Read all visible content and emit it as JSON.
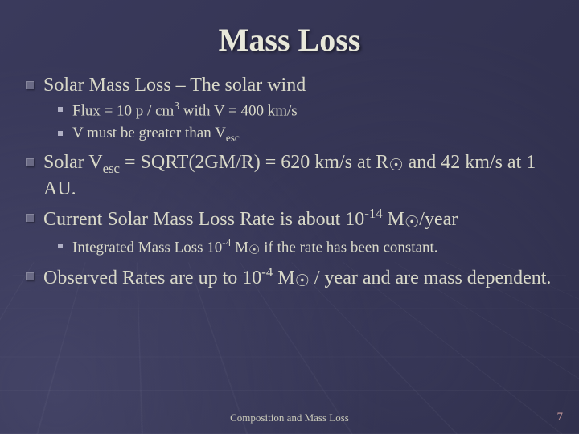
{
  "title": "Mass Loss",
  "items": [
    {
      "level": 1,
      "html": "Solar Mass Loss – The solar wind"
    },
    {
      "level": 2,
      "html": "Flux = 10 p / cm<sup>3</sup> with V = 400 km/s"
    },
    {
      "level": 2,
      "html": "V must be greater than V<sub>esc</sub>"
    },
    {
      "level": 1,
      "html": "Solar V<sub>esc</sub> = SQRT(2GM/R) = 620 km/s at R<span class=\"sun\">☉</span> and 42 km/s at 1 AU."
    },
    {
      "level": 1,
      "html": "Current Solar Mass Loss Rate is about 10<sup>-14</sup> M<span class=\"sun\">☉</span>/year"
    },
    {
      "level": 2,
      "html": "Integrated Mass Loss  10<sup>-4</sup> M<span class=\"sun\">☉</span> if the rate has been constant."
    },
    {
      "level": 1,
      "html": "Observed Rates are up to 10<sup>-4</sup> M<span class=\"sun\">☉</span> / year and are mass dependent."
    }
  ],
  "footer": "Composition and Mass Loss",
  "page_number": "7",
  "colors": {
    "background": "#3a3a5c",
    "title": "#e8e8da",
    "body_text": "#d8d8c8",
    "bullet_lvl1": "#6a6a85",
    "bullet_lvl2": "#b0b0c4",
    "pagenum": "#c89a9a"
  },
  "fonts": {
    "title_size_pt": 30,
    "lvl1_size_pt": 18,
    "lvl2_size_pt": 14,
    "footer_size_pt": 10
  }
}
